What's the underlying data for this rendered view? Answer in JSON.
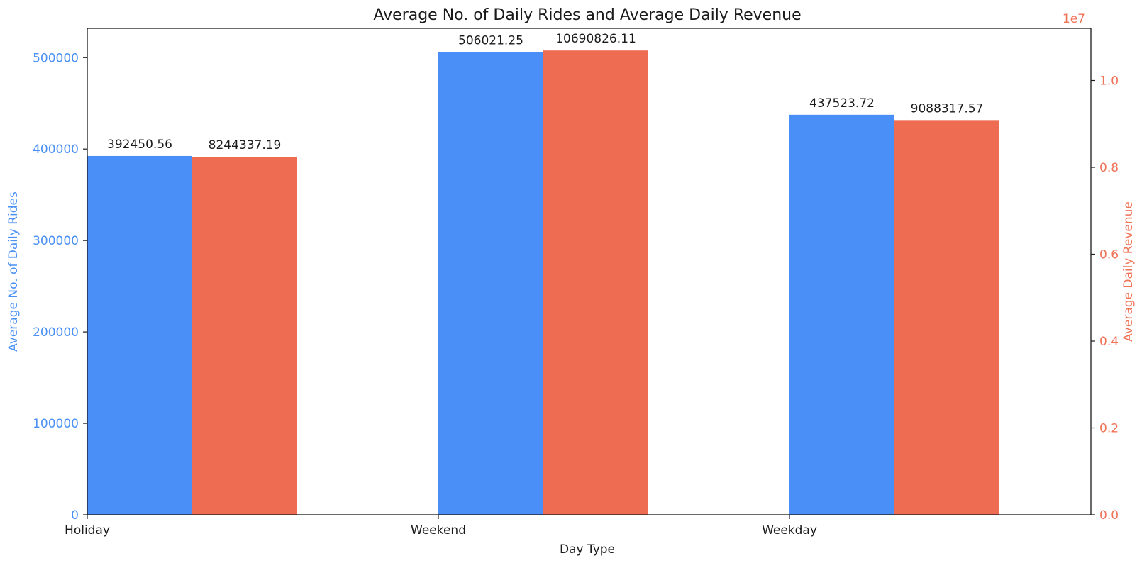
{
  "chart_data": {
    "type": "bar",
    "title": "Average No. of Daily Rides and Average Daily Revenue",
    "xlabel": "Day Type",
    "categories": [
      "Holiday",
      "Weekend",
      "Weekday"
    ],
    "series": [
      {
        "axis": "left",
        "color": "#4a8ff7",
        "values": [
          392450.56,
          506021.25,
          437523.72
        ],
        "labels": [
          "392450.56",
          "506021.25",
          "437523.72"
        ]
      },
      {
        "axis": "right",
        "color": "#ed6c52",
        "values": [
          8244337.19,
          10690826.11,
          9088317.57
        ],
        "labels": [
          "8244337.19",
          "10690826.11",
          "9088317.57"
        ]
      }
    ],
    "y_left": {
      "label": "Average No. of Daily Rides",
      "range": [
        0,
        532000
      ],
      "ticks": [
        0,
        100000,
        200000,
        300000,
        400000,
        500000
      ],
      "tick_labels": [
        "0",
        "100000",
        "200000",
        "300000",
        "400000",
        "500000"
      ],
      "color": "#4a90f5"
    },
    "y_right": {
      "label": "Average Daily Revenue",
      "range": [
        0,
        11200000
      ],
      "offset_text": "1e7",
      "ticks": [
        0,
        2000000,
        4000000,
        6000000,
        8000000,
        10000000
      ],
      "tick_labels": [
        "0.0",
        "0.2",
        "0.4",
        "0.6",
        "0.8",
        "1.0"
      ],
      "color": "#f07358"
    },
    "grid": false,
    "legend": "none"
  }
}
